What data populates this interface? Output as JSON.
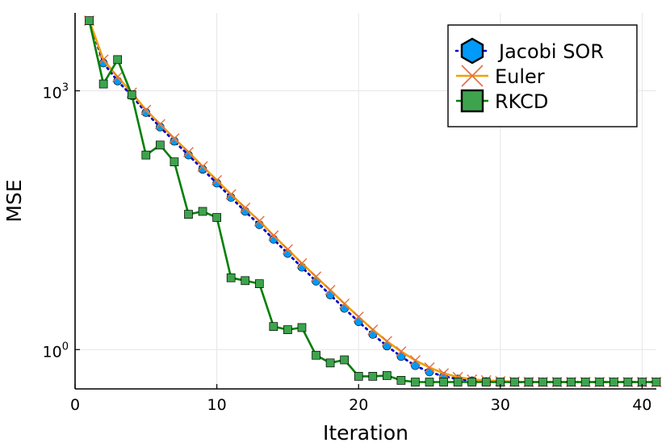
{
  "chart_data": {
    "type": "line",
    "title": "",
    "xlabel": "Iteration",
    "ylabel": "MSE",
    "xlim": [
      0,
      41
    ],
    "ylog": true,
    "ylim": [
      0.35,
      8000
    ],
    "x_ticks": [
      0,
      10,
      20,
      30,
      40
    ],
    "y_ticks": [
      {
        "value": 1,
        "base": "10",
        "exp": "0"
      },
      {
        "value": 1000,
        "base": "10",
        "exp": "3"
      }
    ],
    "grid": true,
    "legend": "top-right",
    "series": [
      {
        "name": "Jacobi SOR",
        "color": "#009af9",
        "line_color": "#0000cc",
        "line_style": "dotted",
        "marker": "circle",
        "x": [
          1,
          2,
          3,
          4,
          5,
          6,
          7,
          8,
          9,
          10,
          11,
          12,
          13,
          14,
          15,
          16,
          17,
          18,
          19,
          20,
          21,
          22,
          23,
          24,
          25,
          26,
          27,
          28,
          29,
          30,
          31,
          32,
          33,
          34,
          35,
          36,
          37,
          38,
          39,
          40,
          41
        ],
        "y": [
          6500,
          2100,
          1300,
          880,
          560,
          380,
          260,
          180,
          123,
          85,
          58,
          40,
          28,
          19,
          13,
          9.0,
          6.2,
          4.3,
          3.0,
          2.1,
          1.5,
          1.1,
          0.83,
          0.65,
          0.55,
          0.49,
          0.455,
          0.435,
          0.425,
          0.42,
          0.42,
          0.42,
          0.42,
          0.42,
          0.42,
          0.42,
          0.42,
          0.42,
          0.42,
          0.42,
          0.42
        ]
      },
      {
        "name": "Euler",
        "color": "#e26f46",
        "line_color": "#f0a000",
        "line_style": "solid",
        "marker": "x",
        "x": [
          1,
          2,
          3,
          4,
          5,
          6,
          7,
          8,
          9,
          10,
          11,
          12,
          13,
          14,
          15,
          16,
          17,
          18,
          19,
          20,
          21,
          22,
          23,
          24,
          25,
          26,
          27,
          28,
          29,
          30,
          31,
          32,
          33,
          34,
          35,
          36,
          37,
          38,
          39,
          40,
          41
        ],
        "y": [
          6500,
          2300,
          1450,
          950,
          600,
          410,
          280,
          195,
          133,
          92,
          63,
          44,
          31,
          21,
          14.5,
          10,
          7,
          4.9,
          3.4,
          2.4,
          1.7,
          1.25,
          0.95,
          0.75,
          0.62,
          0.53,
          0.48,
          0.45,
          0.44,
          0.43,
          0.425,
          0.42,
          0.42,
          0.42,
          0.42,
          0.42,
          0.42,
          0.42,
          0.42,
          0.42,
          0.42
        ]
      },
      {
        "name": "RKCD",
        "color": "#3da44d",
        "line_color": "#008000",
        "line_style": "solid",
        "marker": "square",
        "x": [
          1,
          2,
          3,
          4,
          5,
          6,
          7,
          8,
          9,
          10,
          11,
          12,
          13,
          14,
          15,
          16,
          17,
          18,
          19,
          20,
          21,
          22,
          23,
          24,
          25,
          26,
          27,
          28,
          29,
          30,
          31,
          32,
          33,
          34,
          35,
          36,
          37,
          38,
          39,
          40,
          41
        ],
        "y": [
          6500,
          1200,
          2300,
          900,
          180,
          235,
          150,
          37,
          40,
          34,
          6.8,
          6.3,
          5.8,
          1.85,
          1.7,
          1.8,
          0.86,
          0.7,
          0.76,
          0.49,
          0.49,
          0.5,
          0.44,
          0.42,
          0.42,
          0.42,
          0.42,
          0.42,
          0.42,
          0.42,
          0.42,
          0.42,
          0.42,
          0.42,
          0.42,
          0.42,
          0.42,
          0.42,
          0.42,
          0.42,
          0.42
        ]
      }
    ]
  }
}
